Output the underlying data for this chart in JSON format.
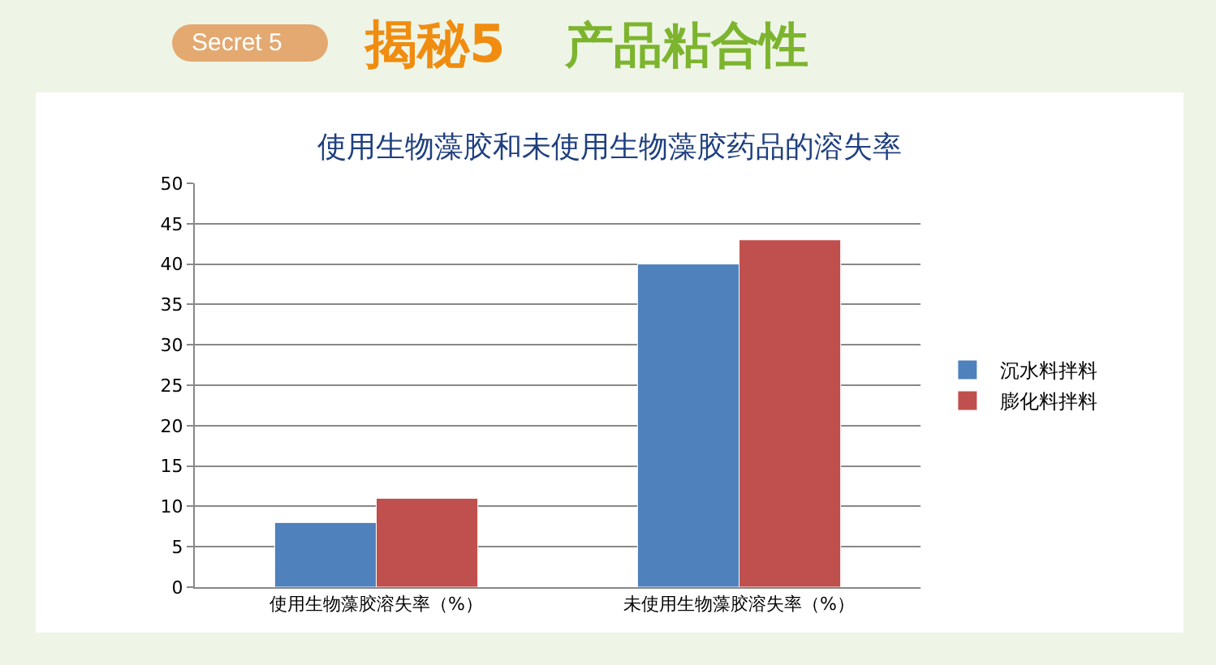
{
  "chart_data": {
    "type": "bar",
    "title": "使用生物藻胶和未使用生物藻胶药品的溶失率",
    "annotations": [
      "Secret 5",
      "揭秘5",
      "产品粘合性"
    ],
    "categories": [
      "使用生物藻胶溶失率（%）",
      "未使用生物藻胶溶失率（%）"
    ],
    "series": [
      {
        "name": "沉水料拌料",
        "color": "#4f81bd",
        "values": [
          8,
          40
        ]
      },
      {
        "name": "膨化料拌料",
        "color": "#c0504d",
        "values": [
          11,
          43
        ]
      }
    ],
    "ylim": [
      0,
      50
    ],
    "yticks": [
      0,
      5,
      10,
      15,
      20,
      25,
      30,
      35,
      40,
      45,
      50
    ],
    "grid": "y",
    "legend": "right"
  }
}
